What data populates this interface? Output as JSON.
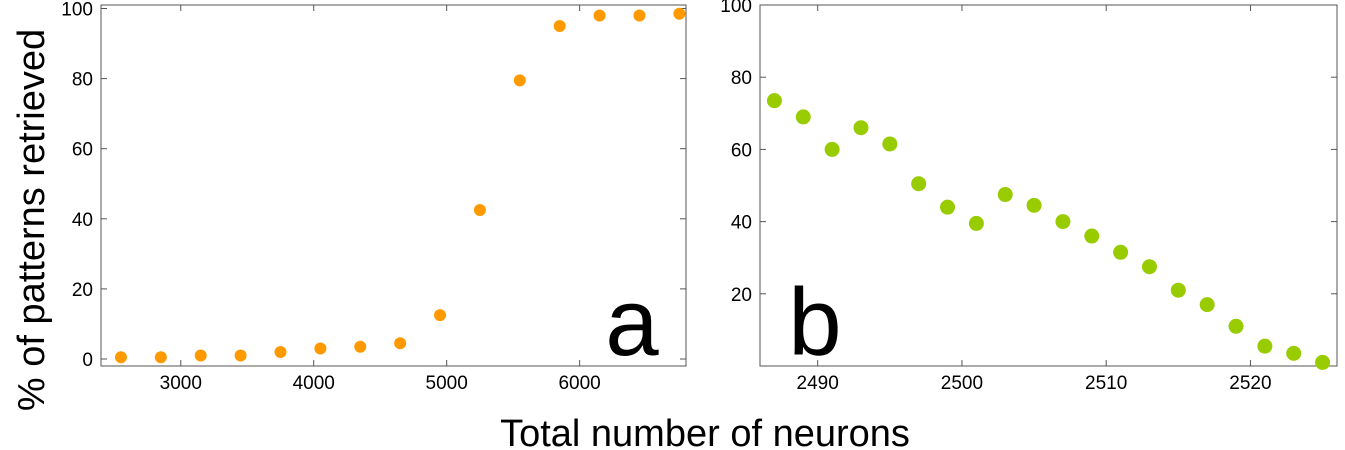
{
  "figure": {
    "ylabel": "% of patterns retrieved",
    "xlabel": "Total number of neurons"
  },
  "chart_data": [
    {
      "type": "scatter",
      "panel_label": "a",
      "color": "#ff9900",
      "xlim": [
        2400,
        6800
      ],
      "ylim": [
        -2,
        101
      ],
      "xticks": [
        3000,
        4000,
        5000,
        6000
      ],
      "xtick_labels": [
        "3000",
        "4000",
        "5000",
        "6000"
      ],
      "yticks": [
        0,
        20,
        40,
        60,
        80,
        100
      ],
      "ytick_labels": [
        "0",
        "20",
        "40",
        "60",
        "80",
        "100"
      ],
      "x": [
        2550,
        2850,
        3150,
        3450,
        3750,
        4050,
        4350,
        4650,
        4950,
        5250,
        5550,
        5850,
        6150,
        6450,
        6750
      ],
      "y": [
        0.5,
        0.5,
        1,
        1,
        2,
        3,
        3.5,
        4.5,
        12.5,
        42.5,
        79.5,
        95,
        98,
        98,
        98.5
      ]
    },
    {
      "type": "scatter",
      "panel_label": "b",
      "color": "#99cc00",
      "xlim": [
        2486,
        2526
      ],
      "ylim": [
        0,
        100
      ],
      "xticks": [
        2490,
        2500,
        2510,
        2520
      ],
      "xtick_labels": [
        "2490",
        "2500",
        "2510",
        "2520"
      ],
      "yticks": [
        20,
        40,
        60,
        80,
        100
      ],
      "ytick_labels": [
        "20",
        "40",
        "60",
        "80",
        "100"
      ],
      "x": [
        2487,
        2489,
        2491,
        2493,
        2495,
        2497,
        2499,
        2501,
        2503,
        2505,
        2507,
        2509,
        2511,
        2513,
        2515,
        2517,
        2519,
        2521,
        2523,
        2525
      ],
      "y": [
        73.5,
        69,
        60,
        66,
        61.5,
        50.5,
        44,
        39.5,
        47.5,
        44.5,
        40,
        36,
        31.5,
        27.5,
        21,
        17,
        11,
        5.5,
        3.5,
        1
      ]
    }
  ]
}
